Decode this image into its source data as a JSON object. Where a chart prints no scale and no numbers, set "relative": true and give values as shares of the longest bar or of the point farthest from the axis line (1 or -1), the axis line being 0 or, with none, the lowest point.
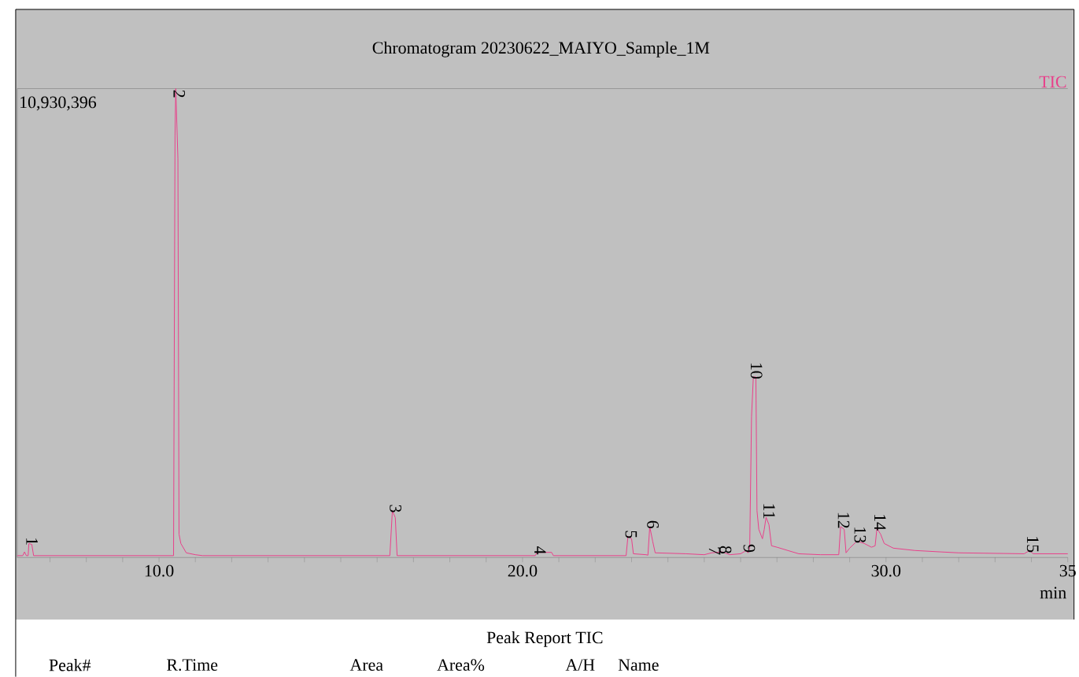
{
  "chart_data": {
    "type": "line",
    "title": "Chromatogram 20230622_MAIYO_Sample_1M",
    "xlabel": "min",
    "relative": true,
    "xlim": [
      6.1,
      35
    ],
    "xticks": [
      {
        "value": 7,
        "label": null
      },
      {
        "value": 8,
        "label": null
      },
      {
        "value": 9,
        "label": null
      },
      {
        "value": 10,
        "label": "10.0"
      },
      {
        "value": 11,
        "label": null
      },
      {
        "value": 12,
        "label": null
      },
      {
        "value": 13,
        "label": null
      },
      {
        "value": 14,
        "label": null
      },
      {
        "value": 15,
        "label": null
      },
      {
        "value": 16,
        "label": null
      },
      {
        "value": 17,
        "label": null
      },
      {
        "value": 18,
        "label": null
      },
      {
        "value": 19,
        "label": null
      },
      {
        "value": 20,
        "label": "20.0"
      },
      {
        "value": 21,
        "label": null
      },
      {
        "value": 22,
        "label": null
      },
      {
        "value": 23,
        "label": null
      },
      {
        "value": 24,
        "label": null
      },
      {
        "value": 25,
        "label": null
      },
      {
        "value": 26,
        "label": null
      },
      {
        "value": 27,
        "label": null
      },
      {
        "value": 28,
        "label": null
      },
      {
        "value": 29,
        "label": null
      },
      {
        "value": 30,
        "label": "30.0"
      },
      {
        "value": 31,
        "label": null
      },
      {
        "value": 32,
        "label": null
      },
      {
        "value": 33,
        "label": null
      },
      {
        "value": 34,
        "label": null
      },
      {
        "value": 35,
        "label": "35"
      }
    ],
    "x": [
      6.1,
      6.25,
      6.3,
      6.35,
      6.4,
      6.42,
      6.5,
      6.55,
      10.4,
      10.44,
      10.46,
      10.52,
      10.55,
      10.6,
      10.75,
      11.0,
      11.2,
      16.35,
      16.42,
      16.5,
      16.55,
      20.35,
      20.4,
      20.8,
      20.85,
      22.85,
      22.9,
      23.0,
      23.05,
      23.4,
      23.45,
      23.5,
      23.58,
      23.65,
      24.5,
      25.0,
      25.2,
      25.5,
      25.7,
      26.0,
      26.15,
      26.2,
      26.25,
      26.3,
      26.35,
      26.42,
      26.45,
      26.5,
      26.6,
      26.65,
      26.7,
      26.78,
      26.85,
      27.0,
      27.3,
      27.6,
      28.2,
      28.7,
      28.75,
      28.85,
      28.9,
      29.0,
      29.2,
      29.4,
      29.6,
      29.7,
      29.75,
      29.85,
      29.95,
      30.2,
      30.8,
      31.5,
      32.0,
      33.8,
      33.95,
      34.05,
      35.0
    ],
    "series": [
      {
        "name": "TIC",
        "color": "#e8408a",
        "values": [
          0.004,
          0.004,
          0.012,
          0.004,
          0.004,
          0.03,
          0.028,
          0.004,
          0.004,
          0.9,
          1.0,
          0.85,
          0.05,
          0.03,
          0.01,
          0.006,
          0.004,
          0.004,
          0.1,
          0.085,
          0.004,
          0.004,
          0.011,
          0.011,
          0.004,
          0.004,
          0.045,
          0.04,
          0.008,
          0.006,
          0.005,
          0.066,
          0.035,
          0.01,
          0.008,
          0.006,
          0.01,
          0.012,
          0.006,
          0.008,
          0.015,
          0.01,
          0.02,
          0.3,
          0.385,
          0.385,
          0.1,
          0.06,
          0.04,
          0.06,
          0.086,
          0.07,
          0.025,
          0.022,
          0.015,
          0.008,
          0.006,
          0.006,
          0.066,
          0.06,
          0.01,
          0.02,
          0.035,
          0.03,
          0.022,
          0.025,
          0.062,
          0.05,
          0.03,
          0.02,
          0.015,
          0.012,
          0.01,
          0.008,
          0.015,
          0.008,
          0.008
        ]
      }
    ],
    "annotations": [
      {
        "text": "1",
        "x": 6.42,
        "y": 0.03
      },
      {
        "text": "2",
        "x": 10.46,
        "y": 1.0
      },
      {
        "text": "3",
        "x": 16.42,
        "y": 0.1
      },
      {
        "text": "4",
        "x": 20.4,
        "y": 0.011
      },
      {
        "text": "5",
        "x": 22.9,
        "y": 0.045
      },
      {
        "text": "6",
        "x": 23.5,
        "y": 0.066
      },
      {
        "text": "7",
        "x": 25.2,
        "y": 0.01
      },
      {
        "text": "8",
        "x": 25.5,
        "y": 0.012
      },
      {
        "text": "9",
        "x": 26.15,
        "y": 0.015
      },
      {
        "text": "10",
        "x": 26.35,
        "y": 0.385
      },
      {
        "text": "11",
        "x": 26.7,
        "y": 0.086
      },
      {
        "text": "12",
        "x": 28.75,
        "y": 0.066
      },
      {
        "text": "13",
        "x": 29.2,
        "y": 0.035
      },
      {
        "text": "14",
        "x": 29.75,
        "y": 0.062
      },
      {
        "text": "15",
        "x": 33.95,
        "y": 0.015
      },
      "10,930,396",
      "Peak Report TIC",
      "Peak#",
      "R.Time",
      "Area",
      "Area%",
      "A/H",
      "Name"
    ]
  }
}
